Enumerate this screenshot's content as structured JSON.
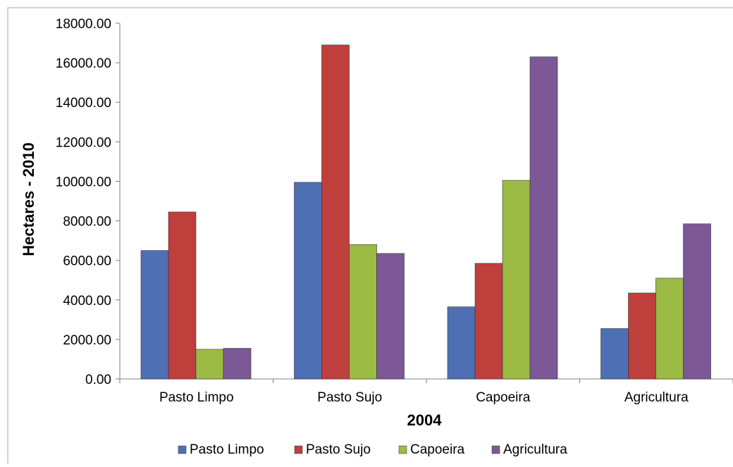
{
  "chart_data": {
    "type": "bar",
    "title": "",
    "xlabel": "2004",
    "ylabel": "Hectares  - 2010",
    "ylim": [
      0,
      18000
    ],
    "yticks": [
      "0.00",
      "2000.00",
      "4000.00",
      "6000.00",
      "8000.00",
      "10000.00",
      "12000.00",
      "14000.00",
      "16000.00",
      "18000.00"
    ],
    "ytick_values": [
      0,
      2000,
      4000,
      6000,
      8000,
      10000,
      12000,
      14000,
      16000,
      18000
    ],
    "categories": [
      "Pasto Limpo",
      "Pasto Sujo",
      "Capoeira",
      "Agricultura"
    ],
    "series": [
      {
        "name": "Pasto Limpo",
        "color": "#4F6FB5",
        "values": [
          6500,
          9950,
          3650,
          2550
        ]
      },
      {
        "name": "Pasto Sujo",
        "color": "#BF3F3C",
        "values": [
          8450,
          16900,
          5850,
          4350
        ]
      },
      {
        "name": "Capoeira",
        "color": "#9BBB45",
        "values": [
          1500,
          6800,
          10050,
          5100
        ]
      },
      {
        "name": "Agricultura",
        "color": "#7D5896",
        "values": [
          1550,
          6350,
          16300,
          7850
        ]
      }
    ],
    "grid": false,
    "legend_position": "bottom"
  }
}
